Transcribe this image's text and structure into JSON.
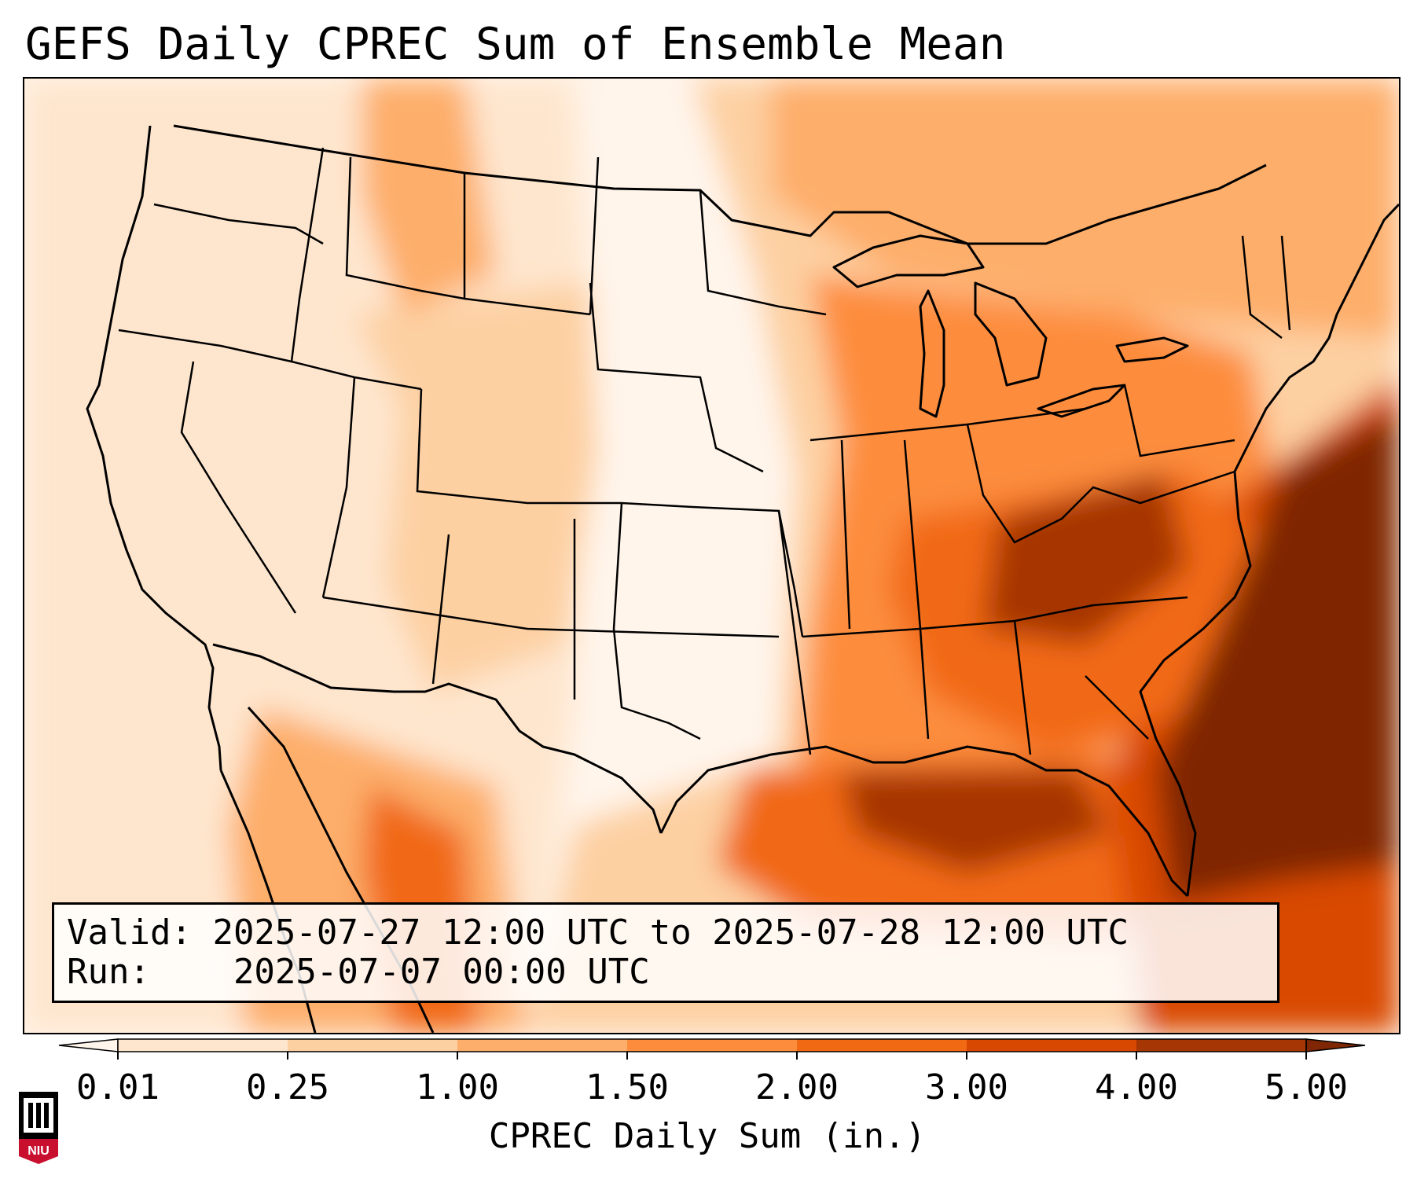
{
  "title": "GEFS Daily CPREC Sum of Ensemble Mean",
  "valid_box": {
    "valid_label": "Valid:",
    "valid_value": "2025-07-27 12:00 UTC to 2025-07-28 12:00 UTC",
    "run_label": "Run:",
    "run_value": "2025-07-07 00:00 UTC"
  },
  "colorbar": {
    "label": "CPREC Daily Sum (in.)",
    "ticks": [
      "0.01",
      "0.25",
      "1.00",
      "1.50",
      "2.00",
      "3.00",
      "4.00",
      "5.00"
    ],
    "colors": [
      "#fff5eb",
      "#fee6ce",
      "#fdd0a2",
      "#fdae6b",
      "#fd8d3c",
      "#f16913",
      "#d94801",
      "#a63603",
      "#7f2704"
    ]
  },
  "logo": {
    "name": "niu-logo",
    "text": "NIU",
    "color": "#c8102e"
  }
}
